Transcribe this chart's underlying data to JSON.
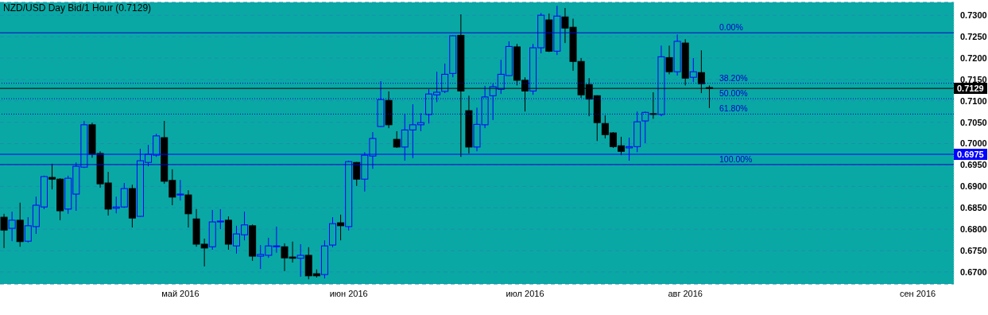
{
  "chart_data": {
    "type": "candlestick",
    "title": "NZD/USD Day Bid/1 Hour (0.7129)",
    "categories": [
      null,
      null,
      null,
      null,
      null,
      null,
      null,
      null,
      null,
      null,
      null,
      null,
      null,
      null,
      null,
      null,
      null,
      null,
      null,
      null,
      null,
      null,
      "май 2016",
      null,
      null,
      null,
      null,
      null,
      null,
      null,
      null,
      null,
      null,
      null,
      null,
      null,
      null,
      null,
      null,
      null,
      null,
      null,
      null,
      "июн 2016",
      null,
      null,
      null,
      null,
      null,
      null,
      null,
      null,
      null,
      null,
      null,
      null,
      null,
      null,
      null,
      null,
      null,
      null,
      null,
      null,
      null,
      "июл 2016",
      null,
      null,
      null,
      null,
      null,
      null,
      null,
      null,
      null,
      null,
      null,
      null,
      null,
      null,
      null,
      null,
      null,
      null,
      null,
      "авг 2016",
      null,
      null,
      null,
      null,
      null,
      null,
      null,
      null,
      null,
      null,
      null,
      null,
      null,
      null,
      null,
      null,
      null,
      null,
      null,
      null,
      null,
      null,
      null,
      null,
      null,
      null,
      null,
      null,
      "сен 2016",
      null,
      null,
      null,
      null
    ],
    "ohlc": [
      [
        0.6828,
        0.6836,
        0.6756,
        0.6798
      ],
      [
        0.6802,
        0.6841,
        0.6772,
        0.6821
      ],
      [
        0.6821,
        0.6862,
        0.6759,
        0.6771
      ],
      [
        0.6772,
        0.6828,
        0.6769,
        0.6808
      ],
      [
        0.6806,
        0.6876,
        0.6789,
        0.6856
      ],
      [
        0.6852,
        0.6925,
        0.6847,
        0.6923
      ],
      [
        0.6921,
        0.6953,
        0.6893,
        0.6917
      ],
      [
        0.6917,
        0.6919,
        0.6821,
        0.6843
      ],
      [
        0.6847,
        0.6925,
        0.6836,
        0.6919
      ],
      [
        0.6882,
        0.6956,
        0.6843,
        0.6947
      ],
      [
        0.6945,
        0.7053,
        0.6943,
        0.7044
      ],
      [
        0.7044,
        0.7049,
        0.6967,
        0.6975
      ],
      [
        0.6977,
        0.6982,
        0.6897,
        0.6906
      ],
      [
        0.6908,
        0.6934,
        0.6832,
        0.6847
      ],
      [
        0.6849,
        0.6876,
        0.6837,
        0.6852
      ],
      [
        0.6852,
        0.6908,
        0.685,
        0.6895
      ],
      [
        0.6895,
        0.6904,
        0.6804,
        0.6826
      ],
      [
        0.683,
        0.6988,
        0.6829,
        0.696
      ],
      [
        0.6956,
        0.6997,
        0.6947,
        0.6975
      ],
      [
        0.6973,
        0.7023,
        0.6969,
        0.7018
      ],
      [
        0.7014,
        0.7053,
        0.6906,
        0.6912
      ],
      [
        0.6914,
        0.694,
        0.6856,
        0.6875
      ],
      [
        0.688,
        0.6915,
        0.6867,
        0.6882
      ],
      [
        0.688,
        0.6891,
        0.6804,
        0.6836
      ],
      [
        0.6824,
        0.6847,
        0.6759,
        0.6765
      ],
      [
        0.6765,
        0.6778,
        0.6713,
        0.6756
      ],
      [
        0.6759,
        0.6845,
        0.6752,
        0.6817
      ],
      [
        0.6817,
        0.6847,
        0.68,
        0.6819
      ],
      [
        0.6821,
        0.683,
        0.6752,
        0.6765
      ],
      [
        0.6761,
        0.6808,
        0.6743,
        0.6789
      ],
      [
        0.6787,
        0.6841,
        0.6774,
        0.681
      ],
      [
        0.6808,
        0.6811,
        0.6726,
        0.6737
      ],
      [
        0.6737,
        0.6763,
        0.6707,
        0.6741
      ],
      [
        0.6739,
        0.678,
        0.6733,
        0.6761
      ],
      [
        0.6759,
        0.6806,
        0.6745,
        0.6761
      ],
      [
        0.6759,
        0.6767,
        0.6702,
        0.6733
      ],
      [
        0.6735,
        0.6771,
        0.6722,
        0.6732
      ],
      [
        0.6732,
        0.6765,
        0.6689,
        0.6739
      ],
      [
        0.6739,
        0.6758,
        0.6683,
        0.6691
      ],
      [
        0.6696,
        0.6706,
        0.6687,
        0.6691
      ],
      [
        0.6694,
        0.6774,
        0.6685,
        0.6761
      ],
      [
        0.6763,
        0.6828,
        0.6758,
        0.6813
      ],
      [
        0.6815,
        0.6834,
        0.6774,
        0.6808
      ],
      [
        0.6806,
        0.696,
        0.6797,
        0.6958
      ],
      [
        0.6956,
        0.6957,
        0.6901,
        0.6917
      ],
      [
        0.6917,
        0.698,
        0.6888,
        0.6973
      ],
      [
        0.6971,
        0.7027,
        0.6941,
        0.7012
      ],
      [
        0.704,
        0.7146,
        0.7039,
        0.7103
      ],
      [
        0.7101,
        0.7122,
        0.7036,
        0.7044
      ],
      [
        0.701,
        0.7029,
        0.699,
        0.6992
      ],
      [
        0.6992,
        0.707,
        0.696,
        0.7032
      ],
      [
        0.7032,
        0.7092,
        0.6966,
        0.7044
      ],
      [
        0.7044,
        0.7071,
        0.7029,
        0.7049
      ],
      [
        0.7068,
        0.7127,
        0.7047,
        0.7116
      ],
      [
        0.7114,
        0.7168,
        0.7097,
        0.712
      ],
      [
        0.7122,
        0.7187,
        0.7118,
        0.7162
      ],
      [
        0.7164,
        0.7253,
        0.7155,
        0.7252
      ],
      [
        0.7253,
        0.7302,
        0.6969,
        0.7123
      ],
      [
        0.7077,
        0.7112,
        0.6977,
        0.6992
      ],
      [
        0.6992,
        0.7084,
        0.6982,
        0.7045
      ],
      [
        0.7044,
        0.7135,
        0.7036,
        0.7109
      ],
      [
        0.7112,
        0.714,
        0.7055,
        0.7133
      ],
      [
        0.7127,
        0.7196,
        0.7116,
        0.7162
      ],
      [
        0.7159,
        0.7239,
        0.7158,
        0.7227
      ],
      [
        0.7226,
        0.7233,
        0.7136,
        0.7148
      ],
      [
        0.7148,
        0.7155,
        0.7075,
        0.7123
      ],
      [
        0.7123,
        0.7233,
        0.7114,
        0.7224
      ],
      [
        0.7224,
        0.7305,
        0.7211,
        0.73
      ],
      [
        0.7289,
        0.7304,
        0.7214,
        0.7216
      ],
      [
        0.7216,
        0.7322,
        0.7207,
        0.7298
      ],
      [
        0.7296,
        0.7317,
        0.7235,
        0.727
      ],
      [
        0.7272,
        0.7292,
        0.717,
        0.7192
      ],
      [
        0.7192,
        0.72,
        0.7107,
        0.7114
      ],
      [
        0.7138,
        0.7153,
        0.7064,
        0.7104
      ],
      [
        0.7112,
        0.7113,
        0.7006,
        0.7049
      ],
      [
        0.7047,
        0.7066,
        0.7012,
        0.7021
      ],
      [
        0.7025,
        0.7027,
        0.699,
        0.6993
      ],
      [
        0.6995,
        0.7016,
        0.6973,
        0.6982
      ],
      [
        0.699,
        0.7014,
        0.696,
        0.6993
      ],
      [
        0.6993,
        0.7075,
        0.698,
        0.7051
      ],
      [
        0.7053,
        0.7075,
        0.7001,
        0.7073
      ],
      [
        0.707,
        0.712,
        0.7058,
        0.7069
      ],
      [
        0.7068,
        0.7229,
        0.7064,
        0.7203
      ],
      [
        0.7201,
        0.7229,
        0.7162,
        0.7168
      ],
      [
        0.7168,
        0.7255,
        0.7159,
        0.7239
      ],
      [
        0.7235,
        0.7244,
        0.7136,
        0.7153
      ],
      [
        0.7155,
        0.72,
        0.7144,
        0.7168
      ],
      [
        0.7166,
        0.7218,
        0.7118,
        0.714
      ],
      [
        0.7131,
        0.7136,
        0.7083,
        0.7129
      ],
      null,
      null,
      null,
      null,
      null,
      null,
      null,
      null,
      null,
      null,
      null,
      null,
      null,
      null,
      null,
      null,
      null,
      null,
      null,
      null,
      null,
      null,
      null,
      null,
      null,
      null,
      null,
      null,
      null,
      null
    ],
    "colors": [
      "#000000",
      "#0000ff",
      "#000000",
      "#0000ff",
      "#0000ff",
      "#0000ff",
      "#000000",
      "#000000",
      "#0000ff",
      "#0000ff",
      "#0000ff",
      "#000000",
      "#000000",
      "#000000",
      "#0000ff",
      "#0000ff",
      "#000000",
      "#0000ff",
      "#0000ff",
      "#0000ff",
      "#000000",
      "#000000",
      "#0000ff",
      "#000000",
      "#000000",
      "#000000",
      "#0000ff",
      "#0000ff",
      "#000000",
      "#0000ff",
      "#0000ff",
      "#000000",
      "#0000ff",
      "#0000ff",
      "#0000ff",
      "#000000",
      "#000000",
      "#0000ff",
      "#000000",
      "#000000",
      "#0000ff",
      "#0000ff",
      "#000000",
      "#0000ff",
      "#000000",
      "#0000ff",
      "#0000ff",
      "#0000ff",
      "#000000",
      "#000000",
      "#0000ff",
      "#0000ff",
      "#0000ff",
      "#0000ff",
      "#0000ff",
      "#0000ff",
      "#0000ff",
      "#000000",
      "#000000",
      "#0000ff",
      "#0000ff",
      "#0000ff",
      "#0000ff",
      "#0000ff",
      "#000000",
      "#000000",
      "#0000ff",
      "#0000ff",
      "#000000",
      "#0000ff",
      "#000000",
      "#000000",
      "#000000",
      "#000000",
      "#000000",
      "#000000",
      "#000000",
      "#000000",
      "#0000ff",
      "#0000ff",
      "#0000ff",
      "#000000",
      "#0000ff",
      "#000000",
      "#0000ff",
      "#000000",
      "#0000ff",
      "#000000",
      "#000000",
      null,
      null,
      null,
      null,
      null,
      null,
      null,
      null,
      null,
      null,
      null,
      null,
      null,
      null,
      null,
      null,
      null,
      null,
      null,
      null,
      null,
      null,
      null,
      null,
      null,
      null,
      null,
      null,
      null,
      null
    ],
    "ylim": [
      0.6672,
      0.733
    ],
    "yticks": [
      {
        "value": 0.67,
        "label": "0.6700"
      },
      {
        "value": 0.675,
        "label": "0.6750"
      },
      {
        "value": 0.68,
        "label": "0.6800"
      },
      {
        "value": 0.685,
        "label": "0.6850"
      },
      {
        "value": 0.69,
        "label": "0.6900"
      },
      {
        "value": 0.695,
        "label": "0.6950"
      },
      {
        "value": 0.7,
        "label": "0.7000"
      },
      {
        "value": 0.705,
        "label": "0.7050"
      },
      {
        "value": 0.71,
        "label": "0.7100"
      },
      {
        "value": 0.715,
        "label": "0.7150"
      },
      {
        "value": 0.72,
        "label": "0.7200"
      },
      {
        "value": 0.725,
        "label": "0.7250"
      },
      {
        "value": 0.73,
        "label": "0.7300"
      }
    ],
    "grid": "y",
    "ref_lines": [
      {
        "axis": "y",
        "value": 0.6975,
        "label": "0.6975",
        "color": "#0000ff",
        "line_style": "solid"
      },
      {
        "axis": "y",
        "value": 0.7129,
        "label": "0.7129",
        "color": "#000000",
        "line_style": "solid"
      },
      {
        "axis": "y",
        "value": 0.7259,
        "color": "#0000cc",
        "line_style": "solid"
      },
      {
        "axis": "y",
        "value": 0.7141,
        "color": "#0000cc",
        "line_style": "dotted"
      },
      {
        "axis": "y",
        "value": 0.7105,
        "color": "#0000cc",
        "line_style": "dotted"
      },
      {
        "axis": "y",
        "value": 0.7069,
        "color": "#0000cc",
        "line_style": "dotted"
      },
      {
        "axis": "y",
        "value": 0.6951,
        "color": "#0000cc",
        "line_style": "solid"
      }
    ],
    "annotations": [
      {
        "text": "0.00%",
        "y": 0.7259
      },
      {
        "text": "38.20%",
        "y": 0.7141
      },
      {
        "text": "50.00%",
        "y": 0.7105
      },
      {
        "text": "61.80%",
        "y": 0.7069
      },
      {
        "text": "100.00%",
        "y": 0.6951
      }
    ]
  }
}
